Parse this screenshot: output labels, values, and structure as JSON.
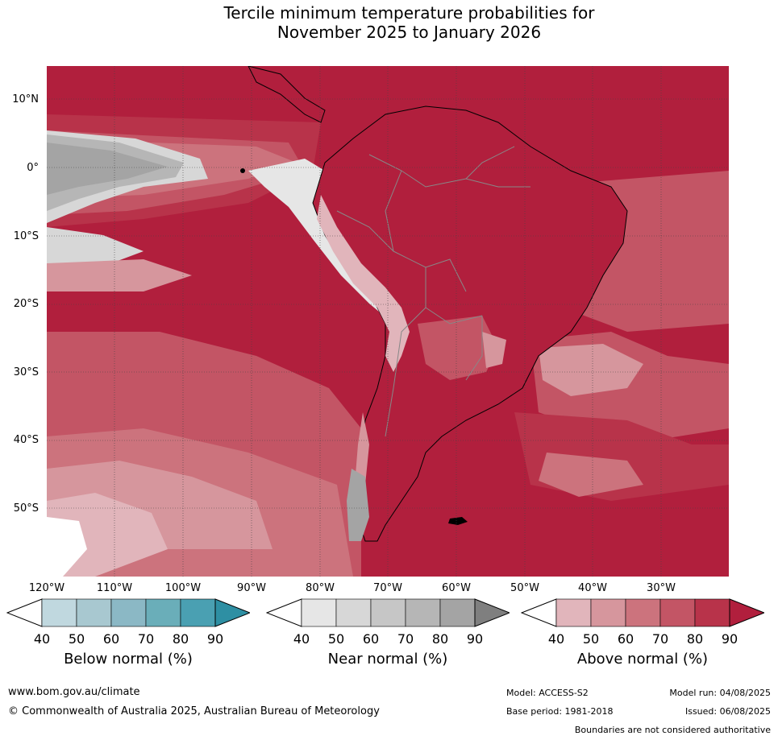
{
  "title": {
    "line1": "Tercile minimum temperature probabilities for",
    "line2": "November 2025 to January 2026"
  },
  "map": {
    "latitude_labels": [
      "10°N",
      "0°",
      "10°S",
      "20°S",
      "30°S",
      "40°S",
      "50°S"
    ],
    "longitude_labels": [
      "120°W",
      "110°W",
      "100°W",
      "90°W",
      "80°W",
      "70°W",
      "60°W",
      "50°W",
      "40°W",
      "30°W"
    ],
    "region": "South America and adjacent eastern Pacific / western Atlantic"
  },
  "legend": {
    "below": {
      "title": "Below normal (%)",
      "ticks": [
        "40",
        "50",
        "60",
        "70",
        "80",
        "90"
      ],
      "colors": [
        "#ffffff",
        "#c0d8df",
        "#a8c8d0",
        "#8bb8c5",
        "#6aaeb9",
        "#4aa0b2",
        "#2e8fa3"
      ]
    },
    "near": {
      "title": "Near normal (%)",
      "ticks": [
        "40",
        "50",
        "60",
        "70",
        "80",
        "90"
      ],
      "colors": [
        "#ffffff",
        "#e6e6e6",
        "#d7d7d7",
        "#c6c6c6",
        "#b6b6b6",
        "#a4a4a4",
        "#7f7f7f"
      ]
    },
    "above": {
      "title": "Above normal (%)",
      "ticks": [
        "40",
        "50",
        "60",
        "70",
        "80",
        "90"
      ],
      "colors": [
        "#ffffff",
        "#e1b5bb",
        "#d6969d",
        "#cc737d",
        "#c35565",
        "#b8334a",
        "#b11f3d"
      ]
    }
  },
  "footer": {
    "website": "www.bom.gov.au/climate",
    "copyright": "© Commonwealth of Australia 2025, Australian Bureau of Meteorology",
    "model": "Model: ACCESS-S2",
    "base_period": "Base period: 1981-2018",
    "model_run": "Model run: 04/08/2025",
    "issued": "Issued: 06/08/2025",
    "disclaimer": "Boundaries are not considered authoritative"
  }
}
